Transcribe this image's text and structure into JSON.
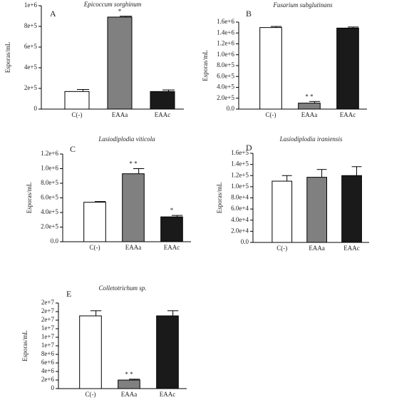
{
  "chart_data": [
    {
      "type": "bar",
      "panel_label": "A",
      "title": "Epicoccum sorghinum",
      "y_label": "Esporas/mL",
      "categories": [
        "C(-)",
        "EAAa",
        "EAAc"
      ],
      "values": [
        170000,
        890000,
        170000
      ],
      "errors": [
        20000,
        8000,
        15000
      ],
      "colors": [
        "#ffffff",
        "#808080",
        "#1a1a1a"
      ],
      "annotations": [
        null,
        "*",
        null
      ],
      "ylim": [
        0,
        1000000
      ],
      "yticks": [
        0,
        {
          "value": 200000,
          "label": "2e+5"
        },
        {
          "value": 400000,
          "label": "4e+5"
        },
        {
          "value": 600000,
          "label": "6e+5"
        },
        {
          "value": 800000,
          "label": "8e+5"
        },
        {
          "value": 1000000,
          "label": "1e+6"
        }
      ]
    },
    {
      "type": "bar",
      "panel_label": "B",
      "title": "Fusarium subglutinans",
      "y_label": "Esporas/mL",
      "categories": [
        "C(-)",
        "EAAa",
        "EAAc"
      ],
      "values": [
        1500000,
        110000,
        1490000
      ],
      "errors": [
        20000,
        30000,
        20000
      ],
      "colors": [
        "#ffffff",
        "#808080",
        "#1a1a1a"
      ],
      "annotations": [
        null,
        "* *",
        null
      ],
      "ylim": [
        0,
        1600000
      ],
      "yticks": [
        {
          "value": 0,
          "label": "0.0"
        },
        {
          "value": 200000,
          "label": "2.0e+5"
        },
        {
          "value": 400000,
          "label": "4.0e+5"
        },
        {
          "value": 600000,
          "label": "6.0e+5"
        },
        {
          "value": 800000,
          "label": "8.0e+5"
        },
        {
          "value": 1000000,
          "label": "1.0e+6"
        },
        {
          "value": 1200000,
          "label": "1.2e+6"
        },
        {
          "value": 1400000,
          "label": "1.4e+6"
        },
        {
          "value": 1600000,
          "label": "1.6e+6"
        }
      ]
    },
    {
      "type": "bar",
      "panel_label": "C",
      "title": "Lasiodiplodia viticola",
      "y_label": "Esporas/mL",
      "categories": [
        "C(-)",
        "EAAa",
        "EAAc"
      ],
      "values": [
        540000,
        930000,
        340000
      ],
      "errors": [
        10000,
        70000,
        20000
      ],
      "colors": [
        "#ffffff",
        "#808080",
        "#1a1a1a"
      ],
      "annotations": [
        null,
        "* *",
        "*"
      ],
      "ylim": [
        0,
        1200000
      ],
      "yticks": [
        {
          "value": 0,
          "label": "0.0"
        },
        {
          "value": 200000,
          "label": "2.0e+5"
        },
        {
          "value": 400000,
          "label": "4.0e+5"
        },
        {
          "value": 600000,
          "label": "6.0e+5"
        },
        {
          "value": 800000,
          "label": "8.0e+5"
        },
        {
          "value": 1000000,
          "label": "1.0e+6"
        },
        {
          "value": 1200000,
          "label": "1.2e+6"
        }
      ]
    },
    {
      "type": "bar",
      "panel_label": "D",
      "title": "Lasiodiplodia iraniensis",
      "y_label": "Esporas/mL",
      "categories": [
        "C(-)",
        "EAAa",
        "EAAc"
      ],
      "values": [
        110000,
        117000,
        120000
      ],
      "errors": [
        10000,
        14000,
        16000
      ],
      "colors": [
        "#ffffff",
        "#808080",
        "#1a1a1a"
      ],
      "annotations": [
        null,
        null,
        null
      ],
      "ylim": [
        0,
        160000
      ],
      "yticks": [
        {
          "value": 0,
          "label": "0.0"
        },
        {
          "value": 20000,
          "label": "2.0e+4"
        },
        {
          "value": 40000,
          "label": "4.0e+4"
        },
        {
          "value": 60000,
          "label": "6.0e+4"
        },
        {
          "value": 80000,
          "label": "8.0e+4"
        },
        {
          "value": 100000,
          "label": "1.0e+5"
        },
        {
          "value": 120000,
          "label": "1.2e+5"
        },
        {
          "value": 140000,
          "label": "1.4e+5"
        },
        {
          "value": 160000,
          "label": "1.6e+5"
        }
      ]
    },
    {
      "type": "bar",
      "panel_label": "E",
      "title": "Colletotrichum sp.",
      "y_label": "Esporas/mL",
      "categories": [
        "C(-)",
        "EAAa",
        "EAAc"
      ],
      "values": [
        17000000,
        2000000,
        17000000
      ],
      "errors": [
        1200000,
        200000,
        1200000
      ],
      "colors": [
        "#ffffff",
        "#808080",
        "#1a1a1a"
      ],
      "annotations": [
        null,
        "* *",
        null
      ],
      "ylim": [
        0,
        20000000
      ],
      "yticks": [
        0,
        {
          "value": 2000000,
          "label": "2e+6"
        },
        {
          "value": 4000000,
          "label": "4e+6"
        },
        {
          "value": 6000000,
          "label": "6e+6"
        },
        {
          "value": 8000000,
          "label": "8e+6"
        },
        {
          "value": 10000000,
          "label": "1e+7"
        },
        {
          "value": 12000000,
          "label": "1e+7"
        },
        {
          "value": 14000000,
          "label": "1e+7"
        },
        {
          "value": 16000000,
          "label": "2e+7"
        },
        {
          "value": 18000000,
          "label": "2e+7"
        },
        {
          "value": 20000000,
          "label": "2e+7"
        }
      ]
    }
  ]
}
